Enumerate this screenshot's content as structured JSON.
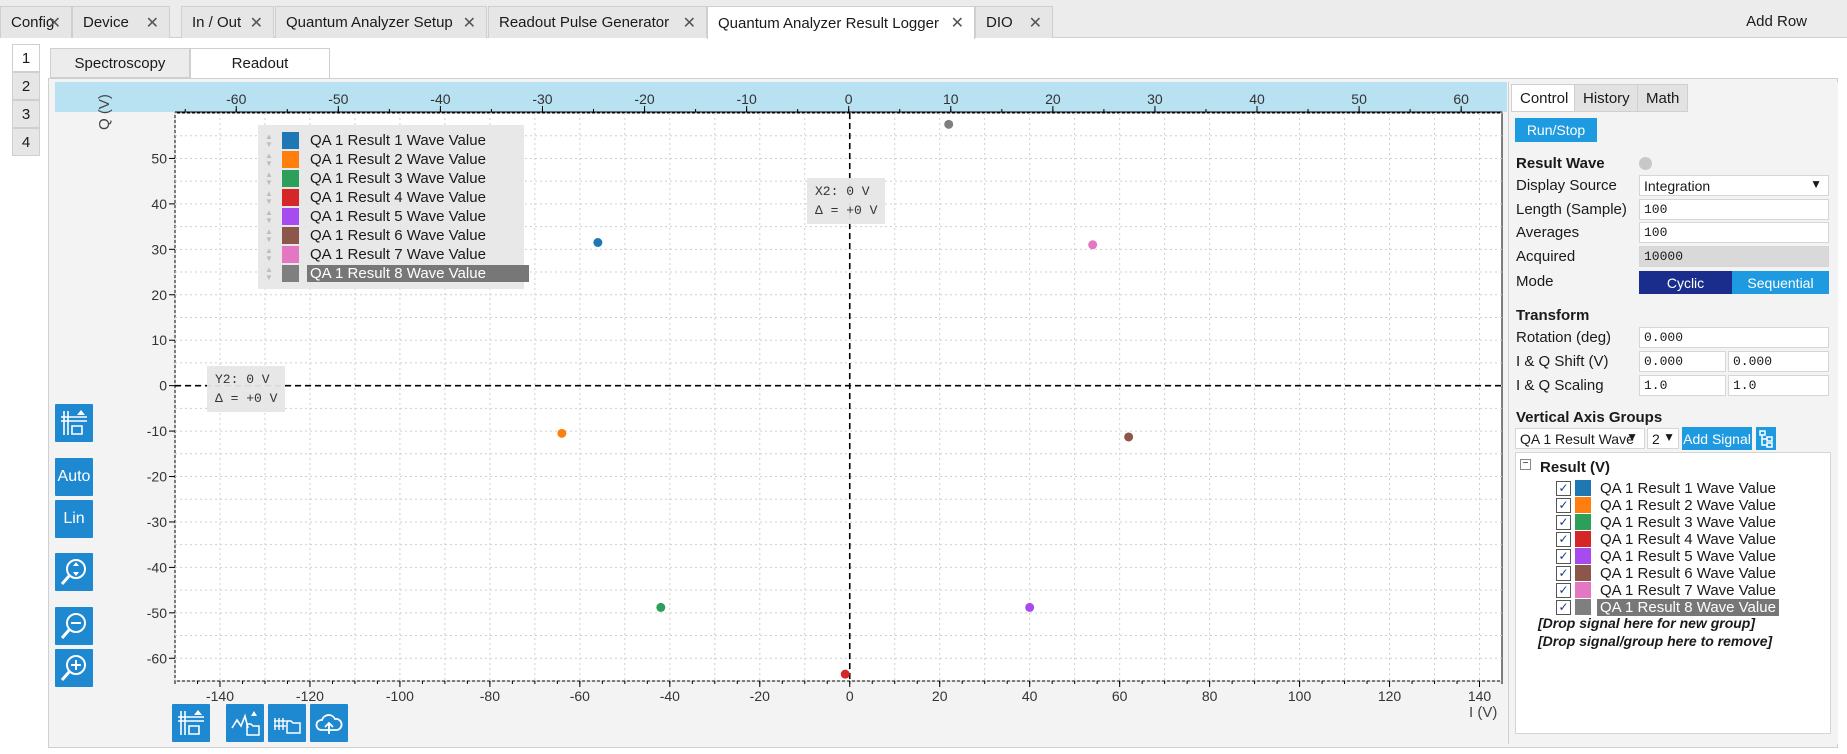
{
  "tabs": [
    {
      "label": "Config"
    },
    {
      "label": "Device"
    },
    {
      "label": "In / Out"
    },
    {
      "label": "Quantum Analyzer Setup"
    },
    {
      "label": "Readout Pulse Generator"
    },
    {
      "label": "Quantum Analyzer Result Logger"
    },
    {
      "label": "DIO"
    }
  ],
  "add_row": "Add Row",
  "row_tabs": [
    "1",
    "2",
    "3",
    "4"
  ],
  "sub_tabs": [
    "Spectroscopy",
    "Readout"
  ],
  "plot": {
    "x_axis_title": "I (V)",
    "y_axis_title": "Q (V)",
    "cursor_x": {
      "line1": "X2: 0 V",
      "line2": "Δ = +0 V"
    },
    "cursor_y": {
      "line1": "Y2: 0 V",
      "line2": "Δ = +0 V"
    },
    "toolbar": {
      "auto": "Auto",
      "lin": "Lin"
    }
  },
  "legend": [
    {
      "label": "QA 1 Result 1 Wave Value",
      "color": "#1f77b4"
    },
    {
      "label": "QA 1 Result 2 Wave Value",
      "color": "#ff7f0e"
    },
    {
      "label": "QA 1 Result 3 Wave Value",
      "color": "#2ca05a"
    },
    {
      "label": "QA 1 Result 4 Wave Value",
      "color": "#d62728"
    },
    {
      "label": "QA 1 Result 5 Wave Value",
      "color": "#a64bf0"
    },
    {
      "label": "QA 1 Result 6 Wave Value",
      "color": "#8c564b"
    },
    {
      "label": "QA 1 Result 7 Wave Value",
      "color": "#e377c2"
    },
    {
      "label": "QA 1 Result 8 Wave Value",
      "color": "#7f7f7f"
    }
  ],
  "chart_data": {
    "type": "scatter",
    "xlabel": "I (V)",
    "ylabel": "Q (V)",
    "xlim": [
      -150,
      145
    ],
    "ylim": [
      -65,
      60
    ],
    "x_ticks": [
      -140,
      -120,
      -100,
      -80,
      -60,
      -40,
      -20,
      0,
      20,
      40,
      60,
      80,
      100,
      120,
      140
    ],
    "y_ticks": [
      -60,
      -50,
      -40,
      -30,
      -20,
      -10,
      0,
      10,
      20,
      30,
      40,
      50
    ],
    "top_axis_ticks": [
      -60,
      -50,
      -40,
      -30,
      -20,
      -10,
      0,
      10,
      20,
      30,
      40,
      50,
      60
    ],
    "top_axis_range": [
      -66,
      64
    ],
    "grid": true,
    "legend_position": "top-left",
    "series": [
      {
        "name": "QA 1 Result 1 Wave Value",
        "x": -56,
        "y": 31.5
      },
      {
        "name": "QA 1 Result 2 Wave Value",
        "x": -64,
        "y": -10.5
      },
      {
        "name": "QA 1 Result 3 Wave Value",
        "x": -42,
        "y": -48.8
      },
      {
        "name": "QA 1 Result 4 Wave Value",
        "x": -1,
        "y": -63.5
      },
      {
        "name": "QA 1 Result 5 Wave Value",
        "x": 40,
        "y": -48.8
      },
      {
        "name": "QA 1 Result 6 Wave Value",
        "x": 62,
        "y": -11.3
      },
      {
        "name": "QA 1 Result 7 Wave Value",
        "x": 54,
        "y": 31
      },
      {
        "name": "QA 1 Result 8 Wave Value",
        "x": 22,
        "y": 57.5
      }
    ]
  },
  "control": {
    "tabs": [
      "Control",
      "History",
      "Math"
    ],
    "run_stop": "Run/Stop",
    "result_wave_title": "Result Wave",
    "display_source_label": "Display Source",
    "display_source_value": "Integration",
    "length_label": "Length (Sample)",
    "length_value": "100",
    "averages_label": "Averages",
    "averages_value": "100",
    "acquired_label": "Acquired",
    "acquired_value": "10000",
    "mode_label": "Mode",
    "mode_cyclic": "Cyclic",
    "mode_sequential": "Sequential",
    "transform_title": "Transform",
    "rotation_label": "Rotation (deg)",
    "rotation_value": "0.000",
    "shift_label": "I & Q Shift (V)",
    "shift_i": "0.000",
    "shift_q": "0.000",
    "scaling_label": "I & Q Scaling",
    "scaling_i": "1.0",
    "scaling_q": "1.0",
    "vag_title": "Vertical Axis Groups",
    "vag_group": "QA 1 Result Wave",
    "vag_index": "2",
    "add_signal": "Add Signal",
    "tree_root": "Result (V)",
    "drop_new_group": "[Drop signal here for new group]",
    "drop_remove": "[Drop signal/group here to remove]"
  }
}
